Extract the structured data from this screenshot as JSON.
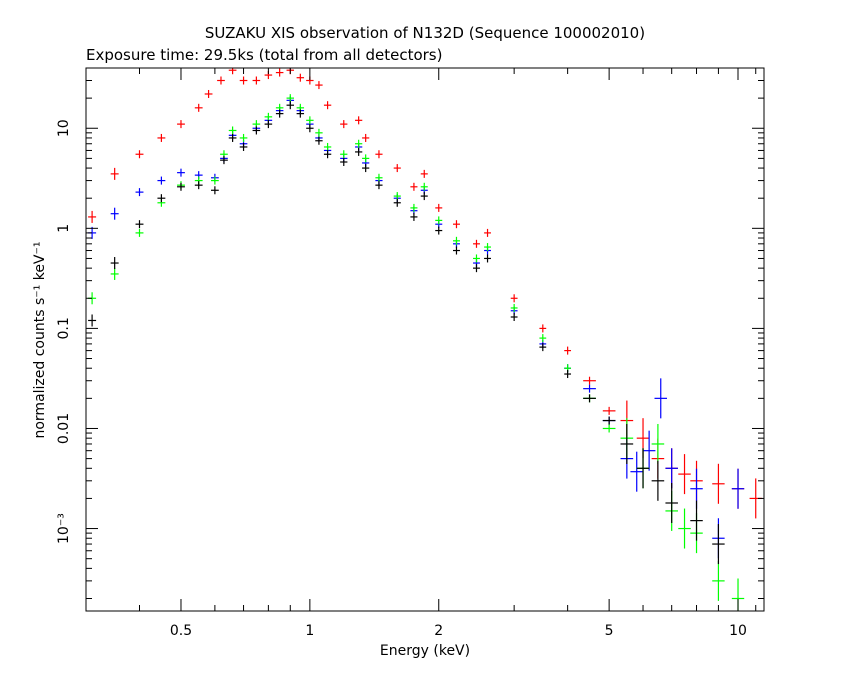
{
  "chart_data": {
    "type": "scatter",
    "title": "SUZAKU XIS observation of N132D (Sequence 100002010)",
    "subtitle": "Exposure time: 29.5ks (total from all detectors)",
    "xlabel": "Energy (keV)",
    "ylabel": "normalized counts s⁻¹ keV⁻¹",
    "x_scale": "log",
    "y_scale": "log",
    "xlim": [
      0.3,
      11.5
    ],
    "ylim": [
      0.00015,
      40
    ],
    "grid": false,
    "x_ticks": [
      {
        "value": 0.5,
        "label": "0.5"
      },
      {
        "value": 1,
        "label": "1"
      },
      {
        "value": 2,
        "label": "2"
      },
      {
        "value": 5,
        "label": "5"
      },
      {
        "value": 10,
        "label": "10"
      }
    ],
    "y_ticks": [
      {
        "value": 10,
        "label": "10"
      },
      {
        "value": 1,
        "label": "1"
      },
      {
        "value": 0.1,
        "label": "0.1"
      },
      {
        "value": 0.01,
        "label": "0.01"
      },
      {
        "value": 0.001,
        "label": "10⁻³"
      }
    ],
    "series": [
      {
        "color": "#ff0000",
        "x": [
          0.31,
          0.35,
          0.4,
          0.45,
          0.5,
          0.55,
          0.58,
          0.62,
          0.66,
          0.7,
          0.75,
          0.8,
          0.85,
          0.9,
          0.95,
          1.0,
          1.05,
          1.1,
          1.2,
          1.3,
          1.35,
          1.45,
          1.6,
          1.75,
          1.85,
          2.0,
          2.2,
          2.45,
          2.6,
          3.0,
          3.5,
          4.0,
          4.5,
          5.0,
          5.5,
          6.0,
          6.5,
          7.0,
          7.5,
          8.0,
          9.0,
          10.0,
          11.0
        ],
        "y": [
          1.3,
          3.5,
          5.5,
          8,
          11,
          16,
          22,
          30,
          38,
          30,
          30,
          34,
          36,
          38,
          32,
          30,
          27,
          17,
          11,
          12,
          8,
          5.5,
          4,
          2.6,
          3.5,
          1.6,
          1.1,
          0.7,
          0.9,
          0.2,
          0.1,
          0.06,
          0.03,
          0.015,
          0.012,
          0.008,
          0.005,
          0.004,
          0.0035,
          0.003,
          0.0028,
          0.0025,
          0.002
        ]
      },
      {
        "color": "#0000ff",
        "x": [
          0.31,
          0.35,
          0.4,
          0.45,
          0.5,
          0.55,
          0.6,
          0.63,
          0.66,
          0.7,
          0.75,
          0.8,
          0.85,
          0.9,
          0.95,
          1.0,
          1.05,
          1.1,
          1.2,
          1.3,
          1.35,
          1.45,
          1.6,
          1.75,
          1.85,
          2.0,
          2.2,
          2.45,
          2.6,
          3.0,
          3.5,
          4.0,
          4.5,
          5.0,
          5.5,
          5.8,
          6.2,
          6.6,
          7.0,
          8.0,
          9.0,
          10.0
        ],
        "y": [
          0.9,
          1.4,
          2.3,
          3.0,
          3.6,
          3.4,
          3.2,
          5.0,
          8.5,
          7.0,
          10,
          12,
          15,
          19,
          15,
          11,
          8,
          6,
          5,
          6.5,
          4.5,
          3.0,
          2.0,
          1.5,
          2.4,
          1.1,
          0.7,
          0.45,
          0.6,
          0.15,
          0.07,
          0.04,
          0.025,
          0.012,
          0.005,
          0.0037,
          0.006,
          0.02,
          0.004,
          0.0025,
          0.0008,
          0.0025
        ]
      },
      {
        "color": "#00ff00",
        "x": [
          0.31,
          0.35,
          0.4,
          0.45,
          0.5,
          0.55,
          0.6,
          0.63,
          0.66,
          0.7,
          0.75,
          0.8,
          0.85,
          0.9,
          0.95,
          1.0,
          1.05,
          1.1,
          1.2,
          1.3,
          1.35,
          1.45,
          1.6,
          1.75,
          1.85,
          2.0,
          2.2,
          2.45,
          2.6,
          3.0,
          3.5,
          4.0,
          4.5,
          5.0,
          5.5,
          6.0,
          6.5,
          7.0,
          7.5,
          8.0,
          9.0,
          10.0
        ],
        "y": [
          0.2,
          0.35,
          0.9,
          1.8,
          2.7,
          3.0,
          3.0,
          5.5,
          9.5,
          8.0,
          11,
          13,
          16,
          20,
          16,
          12,
          9,
          6.5,
          5.5,
          7.0,
          5.0,
          3.2,
          2.1,
          1.6,
          2.6,
          1.2,
          0.75,
          0.5,
          0.65,
          0.16,
          0.08,
          0.04,
          0.02,
          0.01,
          0.008,
          0.004,
          0.007,
          0.0015,
          0.001,
          0.0009,
          0.0003,
          0.0002
        ]
      },
      {
        "color": "#000000",
        "x": [
          0.31,
          0.35,
          0.4,
          0.45,
          0.5,
          0.55,
          0.6,
          0.63,
          0.66,
          0.7,
          0.75,
          0.8,
          0.85,
          0.9,
          0.95,
          1.0,
          1.05,
          1.1,
          1.2,
          1.3,
          1.35,
          1.45,
          1.6,
          1.75,
          1.85,
          2.0,
          2.2,
          2.45,
          2.6,
          3.0,
          3.5,
          4.0,
          4.5,
          5.0,
          5.5,
          6.0,
          6.5,
          7.0,
          8.0,
          9.0
        ],
        "y": [
          0.12,
          0.45,
          1.1,
          2.0,
          2.6,
          2.7,
          2.4,
          4.8,
          8.0,
          6.5,
          9.5,
          11,
          14,
          17,
          14,
          10,
          7.5,
          5.5,
          4.6,
          5.8,
          4.0,
          2.7,
          1.8,
          1.3,
          2.1,
          0.95,
          0.6,
          0.4,
          0.5,
          0.13,
          0.065,
          0.035,
          0.02,
          0.012,
          0.007,
          0.004,
          0.003,
          0.0018,
          0.0012,
          0.0007
        ]
      }
    ]
  }
}
